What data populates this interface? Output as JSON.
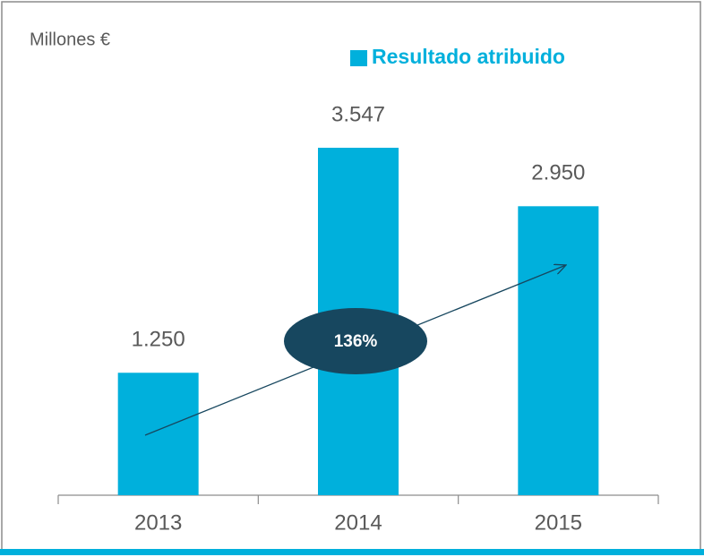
{
  "chart_data": {
    "type": "bar",
    "unit_label": "Millones €",
    "legend": "Resultado atribuido",
    "categories": [
      "2013",
      "2014",
      "2015"
    ],
    "values": [
      1250,
      3547,
      2950
    ],
    "value_labels": [
      "1.250",
      "3.547",
      "2.950"
    ],
    "color": "#00b0dc",
    "annotation": "136%"
  }
}
